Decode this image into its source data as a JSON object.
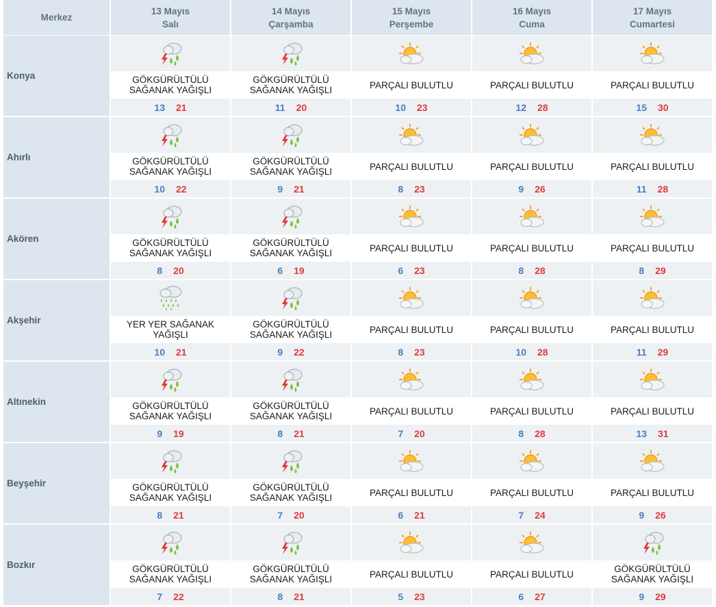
{
  "header": {
    "merkez_label": "Merkez",
    "days": [
      {
        "date": "13 Mayıs",
        "weekday": "Salı"
      },
      {
        "date": "14 Mayıs",
        "weekday": "Çarşamba"
      },
      {
        "date": "15 Mayıs",
        "weekday": "Perşembe"
      },
      {
        "date": "16 Mayıs",
        "weekday": "Cuma"
      },
      {
        "date": "17 Mayıs",
        "weekday": "Cumartesi"
      }
    ]
  },
  "conditions": {
    "storm": "GÖKGÜRÜLTÜLÜ SAĞANAK YAĞIŞLI",
    "partly": "PARÇALI BULUTLU",
    "showers": "YER YER SAĞANAK YAĞIŞLI"
  },
  "rows": [
    {
      "city": "Konya",
      "days": [
        {
          "icon": "thunderstorm-icon",
          "desc": "GÖKGÜRÜLTÜLÜ SAĞANAK YAĞIŞLI",
          "min": "13",
          "max": "21"
        },
        {
          "icon": "thunderstorm-icon",
          "desc": "GÖKGÜRÜLTÜLÜ SAĞANAK YAĞIŞLI",
          "min": "11",
          "max": "20"
        },
        {
          "icon": "partly-cloudy-icon",
          "desc": "PARÇALI BULUTLU",
          "min": "10",
          "max": "23"
        },
        {
          "icon": "partly-cloudy-icon",
          "desc": "PARÇALI BULUTLU",
          "min": "12",
          "max": "28"
        },
        {
          "icon": "partly-cloudy-icon",
          "desc": "PARÇALI BULUTLU",
          "min": "15",
          "max": "30"
        }
      ]
    },
    {
      "city": "Ahırlı",
      "days": [
        {
          "icon": "thunderstorm-icon",
          "desc": "GÖKGÜRÜLTÜLÜ SAĞANAK YAĞIŞLI",
          "min": "10",
          "max": "22"
        },
        {
          "icon": "thunderstorm-icon",
          "desc": "GÖKGÜRÜLTÜLÜ SAĞANAK YAĞIŞLI",
          "min": "9",
          "max": "21"
        },
        {
          "icon": "partly-cloudy-icon",
          "desc": "PARÇALI BULUTLU",
          "min": "8",
          "max": "23"
        },
        {
          "icon": "partly-cloudy-icon",
          "desc": "PARÇALI BULUTLU",
          "min": "9",
          "max": "26"
        },
        {
          "icon": "partly-cloudy-icon",
          "desc": "PARÇALI BULUTLU",
          "min": "11",
          "max": "28"
        }
      ]
    },
    {
      "city": "Akören",
      "days": [
        {
          "icon": "thunderstorm-icon",
          "desc": "GÖKGÜRÜLTÜLÜ SAĞANAK YAĞIŞLI",
          "min": "8",
          "max": "20"
        },
        {
          "icon": "thunderstorm-icon",
          "desc": "GÖKGÜRÜLTÜLÜ SAĞANAK YAĞIŞLI",
          "min": "6",
          "max": "19"
        },
        {
          "icon": "partly-cloudy-icon",
          "desc": "PARÇALI BULUTLU",
          "min": "6",
          "max": "23"
        },
        {
          "icon": "partly-cloudy-icon",
          "desc": "PARÇALI BULUTLU",
          "min": "8",
          "max": "28"
        },
        {
          "icon": "partly-cloudy-icon",
          "desc": "PARÇALI BULUTLU",
          "min": "8",
          "max": "29"
        }
      ]
    },
    {
      "city": "Akşehir",
      "days": [
        {
          "icon": "showers-icon",
          "desc": "YER YER SAĞANAK YAĞIŞLI",
          "min": "10",
          "max": "21"
        },
        {
          "icon": "thunderstorm-icon",
          "desc": "GÖKGÜRÜLTÜLÜ SAĞANAK YAĞIŞLI",
          "min": "9",
          "max": "22"
        },
        {
          "icon": "partly-cloudy-icon",
          "desc": "PARÇALI BULUTLU",
          "min": "8",
          "max": "23"
        },
        {
          "icon": "partly-cloudy-icon",
          "desc": "PARÇALI BULUTLU",
          "min": "10",
          "max": "28"
        },
        {
          "icon": "partly-cloudy-icon",
          "desc": "PARÇALI BULUTLU",
          "min": "11",
          "max": "29"
        }
      ]
    },
    {
      "city": "Altınekin",
      "days": [
        {
          "icon": "thunderstorm-icon",
          "desc": "GÖKGÜRÜLTÜLÜ SAĞANAK YAĞIŞLI",
          "min": "9",
          "max": "19"
        },
        {
          "icon": "thunderstorm-icon",
          "desc": "GÖKGÜRÜLTÜLÜ SAĞANAK YAĞIŞLI",
          "min": "8",
          "max": "21"
        },
        {
          "icon": "partly-cloudy-icon",
          "desc": "PARÇALI BULUTLU",
          "min": "7",
          "max": "20"
        },
        {
          "icon": "partly-cloudy-icon",
          "desc": "PARÇALI BULUTLU",
          "min": "8",
          "max": "28"
        },
        {
          "icon": "partly-cloudy-icon",
          "desc": "PARÇALI BULUTLU",
          "min": "13",
          "max": "31"
        }
      ]
    },
    {
      "city": "Beyşehir",
      "days": [
        {
          "icon": "thunderstorm-icon",
          "desc": "GÖKGÜRÜLTÜLÜ SAĞANAK YAĞIŞLI",
          "min": "8",
          "max": "21"
        },
        {
          "icon": "thunderstorm-icon",
          "desc": "GÖKGÜRÜLTÜLÜ SAĞANAK YAĞIŞLI",
          "min": "7",
          "max": "20"
        },
        {
          "icon": "partly-cloudy-icon",
          "desc": "PARÇALI BULUTLU",
          "min": "6",
          "max": "21"
        },
        {
          "icon": "partly-cloudy-icon",
          "desc": "PARÇALI BULUTLU",
          "min": "7",
          "max": "24"
        },
        {
          "icon": "partly-cloudy-icon",
          "desc": "PARÇALI BULUTLU",
          "min": "9",
          "max": "26"
        }
      ]
    },
    {
      "city": "Bozkır",
      "days": [
        {
          "icon": "thunderstorm-icon",
          "desc": "GÖKGÜRÜLTÜLÜ SAĞANAK YAĞIŞLI",
          "min": "7",
          "max": "22"
        },
        {
          "icon": "thunderstorm-icon",
          "desc": "GÖKGÜRÜLTÜLÜ SAĞANAK YAĞIŞLI",
          "min": "8",
          "max": "21"
        },
        {
          "icon": "partly-cloudy-icon",
          "desc": "PARÇALI BULUTLU",
          "min": "5",
          "max": "23"
        },
        {
          "icon": "partly-cloudy-icon",
          "desc": "PARÇALI BULUTLU",
          "min": "6",
          "max": "27"
        },
        {
          "icon": "thunderstorm-icon",
          "desc": "GÖKGÜRÜLTÜLÜ SAĞANAK YAĞIŞLI",
          "min": "9",
          "max": "29"
        }
      ]
    }
  ],
  "colors": {
    "header_bg": "#dde6ee",
    "row_bg": "#edf1f4",
    "min_temp": "#4b7dbd",
    "max_temp": "#e0393e"
  }
}
